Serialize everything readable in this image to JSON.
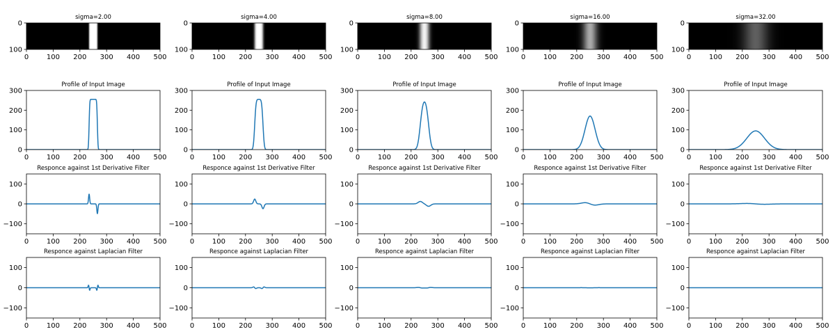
{
  "figure": {
    "signal": {
      "length": 501,
      "box_start": 235,
      "box_end": 265,
      "amplitude": 255
    },
    "sigma_values": [
      2,
      4,
      8,
      16,
      32
    ],
    "row_titles": {
      "image": "sigma={sigma}",
      "profile": "Profile of Input Image",
      "first_derivative": "Responce against 1st Derivative Filter",
      "laplacian": "Responce against Laplacian Filter"
    }
  },
  "chart_data": {
    "type": "grid_of_plots",
    "columns": 5,
    "rows": [
      {
        "kind": "image",
        "titles": [
          "sigma=2.00",
          "sigma=4.00",
          "sigma=8.00",
          "sigma=16.00",
          "sigma=32.00"
        ],
        "xlim": [
          0,
          500
        ],
        "xticks": [
          "0",
          "100",
          "200",
          "300",
          "400",
          "500"
        ],
        "ylim": [
          0,
          100
        ],
        "yticks": [
          "0",
          "100"
        ]
      },
      {
        "kind": "line",
        "title": "Profile of Input Image",
        "xlim": [
          0,
          500
        ],
        "xticks": [
          "0",
          "100",
          "200",
          "300",
          "400",
          "500"
        ],
        "ylim": [
          0,
          300
        ],
        "yticks": [
          "0",
          "100",
          "200",
          "300"
        ],
        "peak_values": [
          255,
          255,
          245,
          175,
          98
        ]
      },
      {
        "kind": "line",
        "title": "Responce against 1st Derivative Filter",
        "xlim": [
          0,
          500
        ],
        "xticks": [
          "0",
          "100",
          "200",
          "300",
          "400",
          "500"
        ],
        "ylim": [
          -150,
          150
        ],
        "yticks": [
          "100",
          "0",
          "−100"
        ],
        "peak_values": [
          48,
          24,
          12,
          6,
          2
        ]
      },
      {
        "kind": "line",
        "title": "Responce against Laplacian Filter",
        "xlim": [
          0,
          500
        ],
        "xticks": [
          "0",
          "100",
          "200",
          "300",
          "400",
          "500"
        ],
        "ylim": [
          -150,
          150
        ],
        "yticks": [
          "100",
          "0",
          "−100"
        ],
        "peak_values": [
          12,
          4,
          1.5,
          0.5,
          0.1
        ]
      }
    ],
    "line_color": "#1f77b4"
  }
}
